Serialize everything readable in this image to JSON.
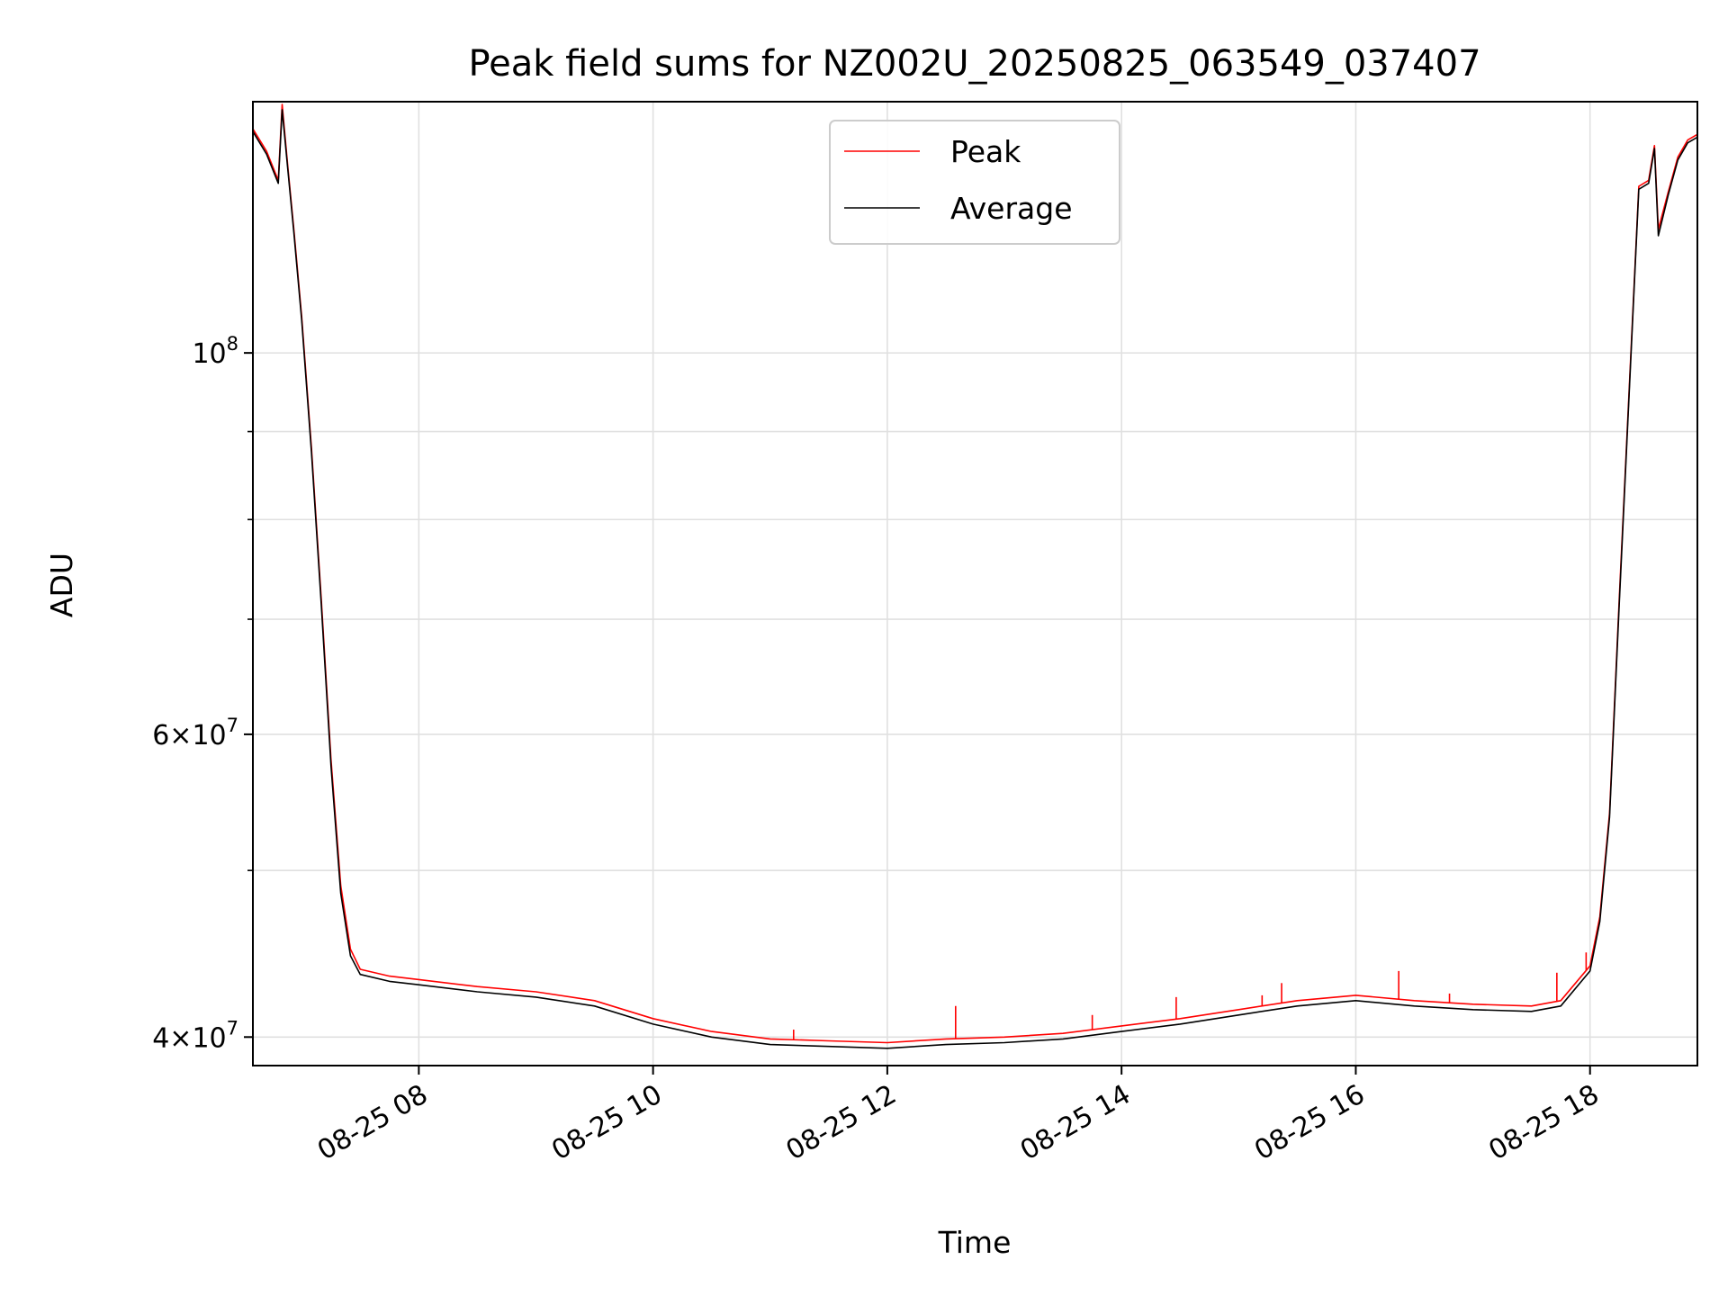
{
  "chart_data": {
    "type": "line",
    "title": "Peak field sums for NZ002U_20250825_063549_037407",
    "xlabel": "Time",
    "ylabel": "ADU",
    "yscale": "log",
    "ylim": [
      38500000,
      140000000
    ],
    "xlim": [
      "2025-08-25 06:35",
      "2025-08-25 18:55"
    ],
    "x_ticks": [
      {
        "value": "2025-08-25 08:00",
        "label": "08-25 08"
      },
      {
        "value": "2025-08-25 10:00",
        "label": "08-25 10"
      },
      {
        "value": "2025-08-25 12:00",
        "label": "08-25 12"
      },
      {
        "value": "2025-08-25 14:00",
        "label": "08-25 14"
      },
      {
        "value": "2025-08-25 16:00",
        "label": "08-25 16"
      },
      {
        "value": "2025-08-25 18:00",
        "label": "08-25 18"
      }
    ],
    "y_ticks": [
      {
        "value": 40000000,
        "base": "4",
        "exp": "7"
      },
      {
        "value": 60000000,
        "base": "6",
        "exp": "7"
      },
      {
        "value": 100000000,
        "base": "",
        "exp": "8"
      }
    ],
    "y_minor_ticks": [
      50000000,
      70000000,
      80000000,
      90000000
    ],
    "grid": true,
    "legend_position": "upper-center",
    "series": [
      {
        "name": "Peak",
        "color": "#ff0000",
        "points": [
          [
            "2025-08-25 06:35",
            135000000
          ],
          [
            "2025-08-25 06:42",
            131000000
          ],
          [
            "2025-08-25 06:48",
            126000000
          ],
          [
            "2025-08-25 06:50",
            139500000
          ],
          [
            "2025-08-25 06:53",
            128000000
          ],
          [
            "2025-08-25 06:56",
            118000000
          ],
          [
            "2025-08-25 07:00",
            105000000
          ],
          [
            "2025-08-25 07:05",
            88000000
          ],
          [
            "2025-08-25 07:10",
            72000000
          ],
          [
            "2025-08-25 07:15",
            58000000
          ],
          [
            "2025-08-25 07:20",
            49000000
          ],
          [
            "2025-08-25 07:25",
            45000000
          ],
          [
            "2025-08-25 07:30",
            43800000
          ],
          [
            "2025-08-25 07:45",
            43400000
          ],
          [
            "2025-08-25 08:00",
            43200000
          ],
          [
            "2025-08-25 08:30",
            42800000
          ],
          [
            "2025-08-25 09:00",
            42500000
          ],
          [
            "2025-08-25 09:30",
            42000000
          ],
          [
            "2025-08-25 10:00",
            41000000
          ],
          [
            "2025-08-25 10:30",
            40300000
          ],
          [
            "2025-08-25 11:00",
            39900000
          ],
          [
            "2025-08-25 11:30",
            39800000
          ],
          [
            "2025-08-25 12:00",
            39700000
          ],
          [
            "2025-08-25 12:30",
            39900000
          ],
          [
            "2025-08-25 13:00",
            40000000
          ],
          [
            "2025-08-25 13:30",
            40200000
          ],
          [
            "2025-08-25 14:00",
            40600000
          ],
          [
            "2025-08-25 14:30",
            41000000
          ],
          [
            "2025-08-25 15:00",
            41500000
          ],
          [
            "2025-08-25 15:30",
            42000000
          ],
          [
            "2025-08-25 16:00",
            42300000
          ],
          [
            "2025-08-25 16:30",
            42000000
          ],
          [
            "2025-08-25 17:00",
            41800000
          ],
          [
            "2025-08-25 17:30",
            41700000
          ],
          [
            "2025-08-25 17:45",
            42000000
          ],
          [
            "2025-08-25 18:00",
            44000000
          ],
          [
            "2025-08-25 18:05",
            47000000
          ],
          [
            "2025-08-25 18:10",
            54000000
          ],
          [
            "2025-08-25 18:15",
            72000000
          ],
          [
            "2025-08-25 18:20",
            95000000
          ],
          [
            "2025-08-25 18:25",
            125000000
          ],
          [
            "2025-08-25 18:30",
            126000000
          ],
          [
            "2025-08-25 18:33",
            132000000
          ],
          [
            "2025-08-25 18:35",
            118000000
          ],
          [
            "2025-08-25 18:40",
            124000000
          ],
          [
            "2025-08-25 18:45",
            130000000
          ],
          [
            "2025-08-25 18:50",
            133000000
          ],
          [
            "2025-08-25 18:55",
            134000000
          ]
        ],
        "spikes": [
          [
            "2025-08-25 12:35",
            41700000
          ],
          [
            "2025-08-25 13:45",
            41200000
          ],
          [
            "2025-08-25 14:28",
            42200000
          ],
          [
            "2025-08-25 15:12",
            42300000
          ],
          [
            "2025-08-25 15:22",
            43000000
          ],
          [
            "2025-08-25 16:22",
            43700000
          ],
          [
            "2025-08-25 16:48",
            42400000
          ],
          [
            "2025-08-25 17:43",
            43600000
          ],
          [
            "2025-08-25 17:58",
            44800000
          ],
          [
            "2025-08-25 11:12",
            40400000
          ]
        ]
      },
      {
        "name": "Average",
        "color": "#000000",
        "points": [
          [
            "2025-08-25 06:35",
            134500000
          ],
          [
            "2025-08-25 06:42",
            130500000
          ],
          [
            "2025-08-25 06:48",
            125500000
          ],
          [
            "2025-08-25 06:50",
            138500000
          ],
          [
            "2025-08-25 06:53",
            127500000
          ],
          [
            "2025-08-25 06:56",
            117500000
          ],
          [
            "2025-08-25 07:00",
            104500000
          ],
          [
            "2025-08-25 07:05",
            87500000
          ],
          [
            "2025-08-25 07:10",
            71500000
          ],
          [
            "2025-08-25 07:15",
            57500000
          ],
          [
            "2025-08-25 07:20",
            48500000
          ],
          [
            "2025-08-25 07:25",
            44600000
          ],
          [
            "2025-08-25 07:30",
            43500000
          ],
          [
            "2025-08-25 07:45",
            43100000
          ],
          [
            "2025-08-25 08:00",
            42900000
          ],
          [
            "2025-08-25 08:30",
            42500000
          ],
          [
            "2025-08-25 09:00",
            42200000
          ],
          [
            "2025-08-25 09:30",
            41700000
          ],
          [
            "2025-08-25 10:00",
            40700000
          ],
          [
            "2025-08-25 10:30",
            40000000
          ],
          [
            "2025-08-25 11:00",
            39600000
          ],
          [
            "2025-08-25 11:30",
            39500000
          ],
          [
            "2025-08-25 12:00",
            39400000
          ],
          [
            "2025-08-25 12:30",
            39600000
          ],
          [
            "2025-08-25 13:00",
            39700000
          ],
          [
            "2025-08-25 13:30",
            39900000
          ],
          [
            "2025-08-25 14:00",
            40300000
          ],
          [
            "2025-08-25 14:30",
            40700000
          ],
          [
            "2025-08-25 15:00",
            41200000
          ],
          [
            "2025-08-25 15:30",
            41700000
          ],
          [
            "2025-08-25 16:00",
            42000000
          ],
          [
            "2025-08-25 16:30",
            41700000
          ],
          [
            "2025-08-25 17:00",
            41500000
          ],
          [
            "2025-08-25 17:30",
            41400000
          ],
          [
            "2025-08-25 17:45",
            41700000
          ],
          [
            "2025-08-25 18:00",
            43700000
          ],
          [
            "2025-08-25 18:05",
            46700000
          ],
          [
            "2025-08-25 18:10",
            53700000
          ],
          [
            "2025-08-25 18:15",
            71500000
          ],
          [
            "2025-08-25 18:20",
            94500000
          ],
          [
            "2025-08-25 18:25",
            124500000
          ],
          [
            "2025-08-25 18:30",
            125500000
          ],
          [
            "2025-08-25 18:33",
            131500000
          ],
          [
            "2025-08-25 18:35",
            117000000
          ],
          [
            "2025-08-25 18:40",
            123500000
          ],
          [
            "2025-08-25 18:45",
            129500000
          ],
          [
            "2025-08-25 18:50",
            132500000
          ],
          [
            "2025-08-25 18:55",
            133500000
          ]
        ]
      }
    ]
  }
}
